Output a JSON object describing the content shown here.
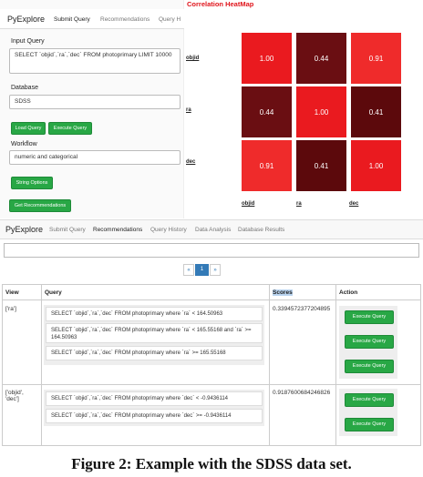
{
  "top": {
    "brand": "PyExplore",
    "nav": [
      "Submit Query",
      "Recommendations",
      "Query H"
    ],
    "input_query_label": "Input Query",
    "input_query": "SELECT `objid`,`ra`,`dec` FROM photoprimary LIMIT 10000",
    "database_label": "Database",
    "database": "SDSS",
    "load_button": "Load Query",
    "execute_button": "Execute Query",
    "workflow_label": "Workflow",
    "workflow": "numeric and categorical",
    "string_button": "String Options",
    "recommend_button": "Get Recommendations"
  },
  "heatmap": {
    "title": "Correlation HeatMap",
    "labels": [
      "objid",
      "ra",
      "dec"
    ],
    "cells": [
      [
        "1.00",
        "0.44",
        "0.91"
      ],
      [
        "0.44",
        "1.00",
        "0.41"
      ],
      [
        "0.91",
        "0.41",
        "1.00"
      ]
    ]
  },
  "bottom": {
    "brand": "PyExplore",
    "nav": [
      "Submit Query",
      "Recommendations",
      "Query History",
      "Data Analysis",
      "Database Results"
    ],
    "pagination": [
      "«",
      "1",
      "»"
    ],
    "headers": [
      "View",
      "Query",
      "Scores",
      "Action"
    ],
    "action_button": "Execute Query",
    "rows": [
      {
        "view": "['ra']",
        "score": "0.3394572377204895",
        "queries": [
          "SELECT `objid`,`ra`,`dec` FROM photoprimary where `ra` < 164.50963",
          "SELECT `objid`,`ra`,`dec` FROM photoprimary where `ra` < 165.55168 and `ra` >= 164.50963",
          "SELECT `objid`,`ra`,`dec` FROM photoprimary where `ra` >= 165.55168"
        ]
      },
      {
        "view": "['objid', 'dec']",
        "score": "0.9187600684246826",
        "queries": [
          "SELECT `objid`,`ra`,`dec` FROM photoprimary where `dec` < -0.9436114",
          "SELECT `objid`,`ra`,`dec` FROM photoprimary where `dec` >= -0.9436114"
        ]
      }
    ]
  },
  "caption": "Figure 2: Example with the SDSS data set."
}
